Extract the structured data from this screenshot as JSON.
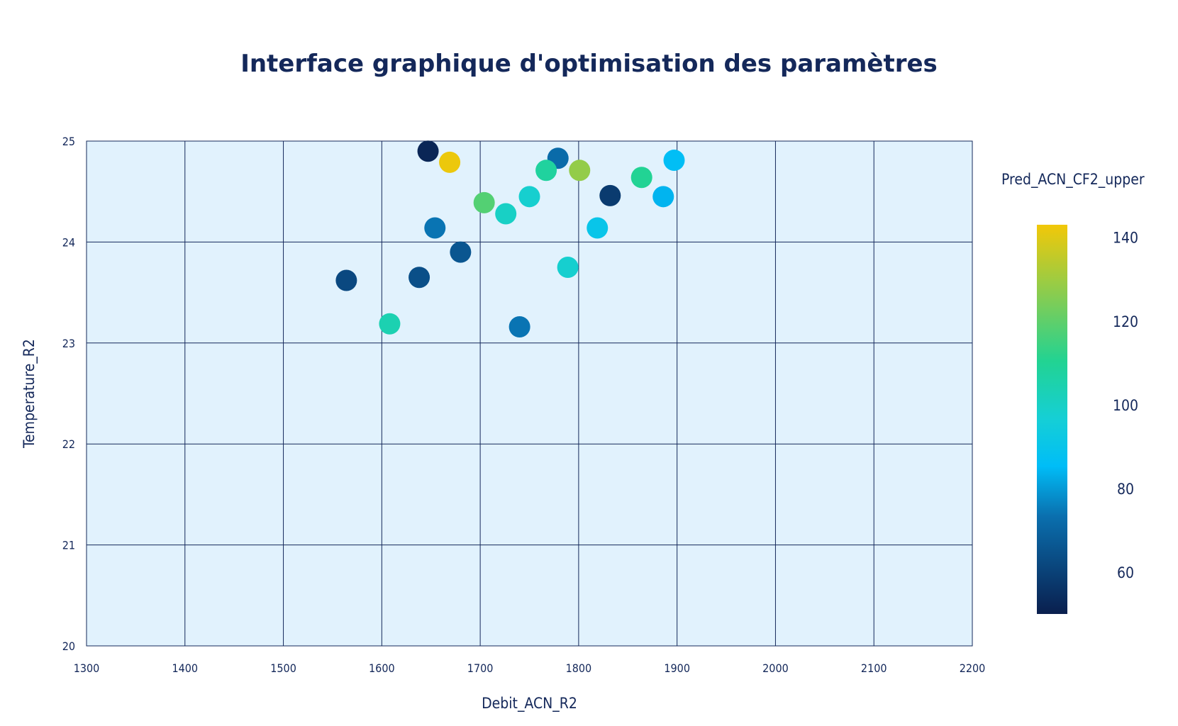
{
  "chart_data": {
    "type": "scatter",
    "title": "Interface graphique d'optimisation des paramètres",
    "xlabel": "Debit_ACN_R2",
    "ylabel": "Temperature_R2",
    "xlim": [
      1300,
      2200
    ],
    "ylim": [
      20,
      25
    ],
    "x_ticks": [
      1300,
      1400,
      1500,
      1600,
      1700,
      1800,
      1900,
      2000,
      2100,
      2200
    ],
    "y_ticks": [
      20,
      21,
      22,
      23,
      24,
      25
    ],
    "grid": true,
    "plot_background": "#e1f2fd",
    "grid_color": "#14285a",
    "text_color": "#14285a",
    "colorbar": {
      "title": "Pred_ACN_CF2_upper",
      "range": [
        50,
        143
      ],
      "ticks": [
        60,
        80,
        100,
        120,
        140
      ],
      "colorscale": [
        [
          0.0,
          "#0a1f4e"
        ],
        [
          0.25,
          "#0a6fae"
        ],
        [
          0.38,
          "#00bdf7"
        ],
        [
          0.5,
          "#15cfd6"
        ],
        [
          0.65,
          "#22d392"
        ],
        [
          0.8,
          "#7ccd58"
        ],
        [
          1.0,
          "#f2c808"
        ]
      ]
    },
    "points": [
      {
        "x": 1647,
        "y": 24.9,
        "c": 52
      },
      {
        "x": 1669,
        "y": 24.79,
        "c": 142
      },
      {
        "x": 1779,
        "y": 24.83,
        "c": 72
      },
      {
        "x": 1767,
        "y": 24.71,
        "c": 108
      },
      {
        "x": 1801,
        "y": 24.71,
        "c": 128
      },
      {
        "x": 1897,
        "y": 24.81,
        "c": 86
      },
      {
        "x": 1864,
        "y": 24.64,
        "c": 110
      },
      {
        "x": 1832,
        "y": 24.46,
        "c": 58
      },
      {
        "x": 1886,
        "y": 24.45,
        "c": 84
      },
      {
        "x": 1750,
        "y": 24.45,
        "c": 98
      },
      {
        "x": 1704,
        "y": 24.39,
        "c": 118
      },
      {
        "x": 1726,
        "y": 24.28,
        "c": 100
      },
      {
        "x": 1654,
        "y": 24.14,
        "c": 74
      },
      {
        "x": 1819,
        "y": 24.14,
        "c": 90
      },
      {
        "x": 1680,
        "y": 23.9,
        "c": 66
      },
      {
        "x": 1789,
        "y": 23.75,
        "c": 98
      },
      {
        "x": 1564,
        "y": 23.62,
        "c": 62
      },
      {
        "x": 1638,
        "y": 23.65,
        "c": 64
      },
      {
        "x": 1608,
        "y": 23.19,
        "c": 104
      },
      {
        "x": 1740,
        "y": 23.16,
        "c": 74
      }
    ]
  }
}
